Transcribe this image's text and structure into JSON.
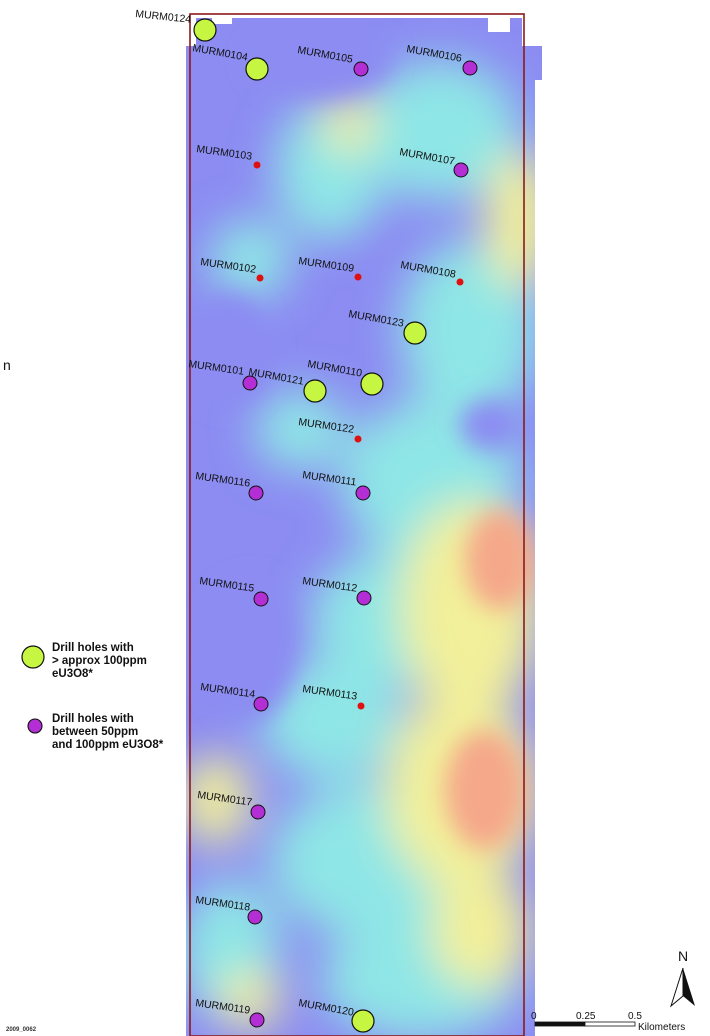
{
  "map": {
    "colors": {
      "boundary": "#8b1a1a",
      "large_hole_fill": "#c6f542",
      "medium_hole_fill": "#b42ed6",
      "small_hole_fill": "#e01010",
      "low": "#8c8cf2",
      "mid": "#8ee6e6",
      "mid_high": "#f2f09a",
      "high": "#f5a88a"
    },
    "drill_holes": [
      {
        "id": "MURM0124",
        "label": "MURM0124",
        "class": "large"
      },
      {
        "id": "MURM0104",
        "label": "MURM0104",
        "class": "large"
      },
      {
        "id": "MURM0105",
        "label": "MURM0105",
        "class": "medium"
      },
      {
        "id": "MURM0106",
        "label": "MURM0106",
        "class": "medium"
      },
      {
        "id": "MURM0103",
        "label": "MURM0103",
        "class": "small"
      },
      {
        "id": "MURM0107",
        "label": "MURM0107",
        "class": "medium"
      },
      {
        "id": "MURM0102",
        "label": "MURM0102",
        "class": "small"
      },
      {
        "id": "MURM0109",
        "label": "MURM0109",
        "class": "small"
      },
      {
        "id": "MURM0108",
        "label": "MURM0108",
        "class": "small"
      },
      {
        "id": "MURM0123",
        "label": "MURM0123",
        "class": "large"
      },
      {
        "id": "MURM0101",
        "label": "MURM0101",
        "class": "medium"
      },
      {
        "id": "MURM0121",
        "label": "MURM0121",
        "class": "large"
      },
      {
        "id": "MURM0110",
        "label": "MURM0110",
        "class": "large"
      },
      {
        "id": "MURM0122",
        "label": "MURM0122",
        "class": "small"
      },
      {
        "id": "MURM0116",
        "label": "MURM0116",
        "class": "medium"
      },
      {
        "id": "MURM0111",
        "label": "MURM0111",
        "class": "medium"
      },
      {
        "id": "MURM0115",
        "label": "MURM0115",
        "class": "medium"
      },
      {
        "id": "MURM0112",
        "label": "MURM0112",
        "class": "medium"
      },
      {
        "id": "MURM0114",
        "label": "MURM0114",
        "class": "medium"
      },
      {
        "id": "MURM0113",
        "label": "MURM0113",
        "class": "small"
      },
      {
        "id": "MURM0117",
        "label": "MURM0117",
        "class": "medium"
      },
      {
        "id": "MURM0118",
        "label": "MURM0118",
        "class": "medium"
      },
      {
        "id": "MURM0119",
        "label": "MURM0119",
        "class": "medium"
      },
      {
        "id": "MURM0120",
        "label": "MURM0120",
        "class": "large"
      }
    ]
  },
  "legend": {
    "large": {
      "line1": "Drill holes with",
      "line2": "> approx 100ppm",
      "line3": "eU3O8*"
    },
    "medium": {
      "line1": "Drill holes with",
      "line2": "between 50ppm",
      "line3": "and 100ppm eU3O8*"
    }
  },
  "scale_bar": {
    "tick_0": "0",
    "tick_1": "0.25",
    "tick_2": "0.5",
    "unit": "Kilometers"
  },
  "north_arrow": {
    "label": "N"
  },
  "side_text": "n",
  "figure_code": "2009_0062"
}
